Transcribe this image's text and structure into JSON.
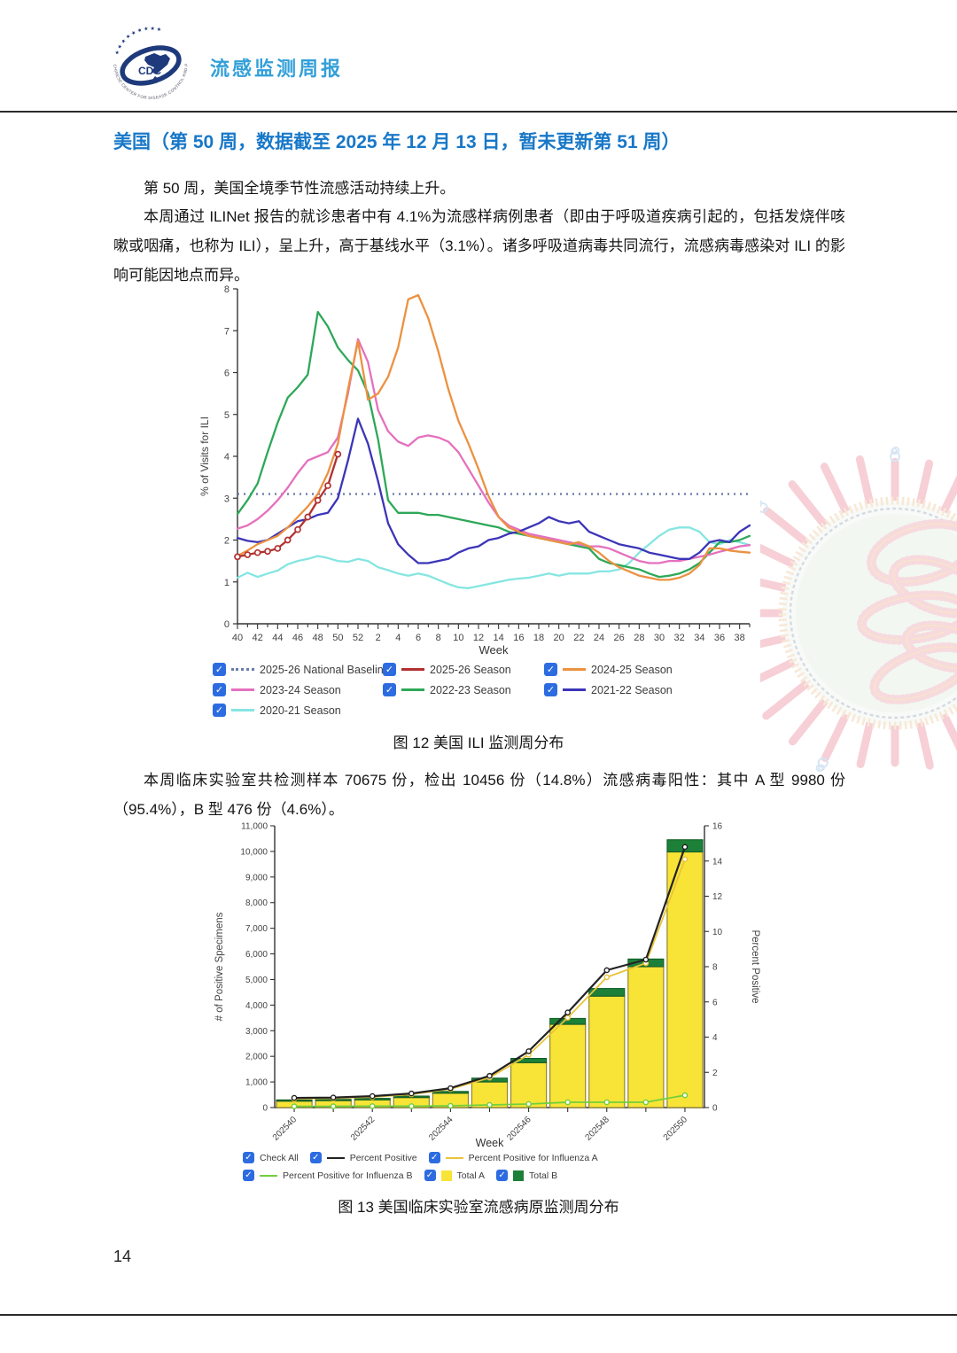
{
  "header": {
    "brand": "流感监测周报",
    "logo_text": "CDC",
    "logo_ring_text": "CHINESE CENTER FOR DISEASE CONTROL AND PREVENTION",
    "logo_stars": "★ ★ ★ ★ ★ ★ ★ ★ ★"
  },
  "page": {
    "number": "14"
  },
  "section": {
    "title": "美国（第 50 周，数据截至 2025 年 12 月 13 日，暂未更新第 51 周）",
    "paragraph_1": "第 50 周，美国全境季节性流感活动持续上升。",
    "paragraph_2": "本周通过 ILINet 报告的就诊患者中有 4.1%为流感样病例患者（即由于呼吸道疾病引起的，包括发烧伴咳嗽或咽痛，也称为 ILI），呈上升，高于基线水平（3.1%）。诸多呼吸道病毒共同流行，流感病毒感染对 ILI 的影响可能因地点而异。",
    "paragraph_3": "本周临床实验室共检测样本 70675 份，检出 10456 份（14.8%）流感病毒阳性：其中 A 型 9980 份（95.4%），B 型 476 份（4.6%）。",
    "figure_12_caption": "图 12  美国 ILI 监测周分布",
    "figure_13_caption": "图 13  美国临床实验室流感病原监测周分布"
  },
  "checkbox_color": "#2d6ce0",
  "chart_data": [
    {
      "id": "ili",
      "type": "line",
      "title": "",
      "xlabel": "Week",
      "ylabel": "% of Visits for ILI",
      "ylim": [
        0,
        8
      ],
      "y_ticks": [
        0,
        1,
        2,
        3,
        4,
        5,
        6,
        7,
        8
      ],
      "weeks": [
        "40",
        "41",
        "42",
        "43",
        "44",
        "45",
        "46",
        "47",
        "48",
        "49",
        "50",
        "51",
        "52",
        "1",
        "2",
        "3",
        "4",
        "5",
        "6",
        "7",
        "8",
        "9",
        "10",
        "11",
        "12",
        "13",
        "14",
        "15",
        "16",
        "17",
        "18",
        "19",
        "20",
        "21",
        "22",
        "23",
        "24",
        "25",
        "26",
        "27",
        "28",
        "29",
        "30",
        "31",
        "32",
        "33",
        "34",
        "35",
        "36",
        "37",
        "38",
        "39"
      ],
      "baseline": {
        "label": "2025-26 National Baseline",
        "value": 3.1,
        "color": "#6b7cab"
      },
      "series": [
        {
          "name": "2020-21 Season",
          "color": "#85e6e1",
          "markers": false,
          "values": [
            1.1,
            1.22,
            1.12,
            1.2,
            1.27,
            1.42,
            1.5,
            1.55,
            1.62,
            1.57,
            1.5,
            1.48,
            1.55,
            1.5,
            1.35,
            1.28,
            1.2,
            1.15,
            1.2,
            1.15,
            1.05,
            0.95,
            0.87,
            0.85,
            0.9,
            0.95,
            1.0,
            1.05,
            1.08,
            1.1,
            1.15,
            1.2,
            1.15,
            1.2,
            1.2,
            1.2,
            1.25,
            1.25,
            1.3,
            1.45,
            1.7,
            1.9,
            2.1,
            2.25,
            2.3,
            2.3,
            2.2,
            1.95,
            1.9,
            2.0,
            1.95,
            1.88
          ]
        },
        {
          "name": "2022-23 Season",
          "color": "#2ea858",
          "markers": false,
          "values": [
            2.62,
            2.95,
            3.35,
            4.1,
            4.8,
            5.4,
            5.65,
            5.95,
            7.45,
            7.1,
            6.6,
            6.3,
            6.05,
            5.5,
            4.4,
            2.95,
            2.65,
            2.65,
            2.65,
            2.6,
            2.6,
            2.55,
            2.5,
            2.45,
            2.4,
            2.35,
            2.3,
            2.2,
            2.15,
            2.1,
            2.05,
            2.0,
            1.95,
            1.9,
            1.85,
            1.8,
            1.55,
            1.45,
            1.4,
            1.35,
            1.3,
            1.2,
            1.12,
            1.15,
            1.2,
            1.3,
            1.45,
            1.7,
            1.95,
            1.95,
            2.0,
            2.1
          ]
        },
        {
          "name": "2023-24 Season",
          "color": "#e570be",
          "markers": false,
          "values": [
            2.27,
            2.35,
            2.5,
            2.7,
            2.95,
            3.25,
            3.6,
            3.9,
            4.0,
            4.1,
            4.45,
            5.5,
            6.8,
            6.25,
            5.1,
            4.6,
            4.35,
            4.25,
            4.45,
            4.5,
            4.45,
            4.35,
            4.1,
            3.7,
            3.3,
            2.9,
            2.55,
            2.35,
            2.25,
            2.15,
            2.1,
            2.05,
            2.0,
            1.95,
            1.9,
            1.85,
            1.85,
            1.8,
            1.7,
            1.6,
            1.5,
            1.45,
            1.45,
            1.5,
            1.5,
            1.55,
            1.6,
            1.65,
            1.72,
            1.78,
            1.85,
            1.88
          ]
        },
        {
          "name": "2021-22 Season",
          "color": "#3c35b8",
          "markers": false,
          "values": [
            2.05,
            1.98,
            1.95,
            2.0,
            2.15,
            2.3,
            2.45,
            2.5,
            2.6,
            2.65,
            3.0,
            3.9,
            4.9,
            4.3,
            3.4,
            2.4,
            1.9,
            1.65,
            1.45,
            1.45,
            1.5,
            1.55,
            1.7,
            1.8,
            1.85,
            2.0,
            2.05,
            2.15,
            2.2,
            2.3,
            2.4,
            2.55,
            2.45,
            2.4,
            2.45,
            2.2,
            2.1,
            2.0,
            1.9,
            1.85,
            1.8,
            1.7,
            1.65,
            1.6,
            1.55,
            1.55,
            1.7,
            1.95,
            2.0,
            1.95,
            2.2,
            2.35
          ]
        },
        {
          "name": "2024-25 Season",
          "color": "#ec9140",
          "markers": false,
          "values": [
            1.62,
            1.75,
            1.9,
            2.0,
            2.1,
            2.3,
            2.55,
            2.8,
            3.1,
            3.6,
            4.3,
            5.6,
            6.75,
            5.35,
            5.5,
            5.9,
            6.6,
            7.75,
            7.85,
            7.3,
            6.5,
            5.6,
            4.85,
            4.3,
            3.7,
            3.05,
            2.55,
            2.3,
            2.2,
            2.1,
            2.05,
            2.0,
            1.95,
            1.9,
            1.95,
            1.85,
            1.7,
            1.5,
            1.35,
            1.25,
            1.15,
            1.1,
            1.05,
            1.05,
            1.1,
            1.2,
            1.4,
            1.8,
            1.8,
            1.75,
            1.72,
            1.7
          ]
        },
        {
          "name": "2025-26 Season",
          "color": "#b23030",
          "markers": true,
          "values": [
            1.6,
            1.65,
            1.7,
            1.73,
            1.8,
            2.0,
            2.25,
            2.55,
            2.95,
            3.3,
            4.05
          ]
        }
      ],
      "legend": [
        {
          "label": "2025-26 National Baseline",
          "swatch": "dotted",
          "color": "#6b7cab",
          "checked": true
        },
        {
          "label": "2025-26 Season",
          "swatch": "line",
          "color": "#b23030",
          "checked": true
        },
        {
          "label": "2024-25 Season",
          "swatch": "line",
          "color": "#ec9140",
          "checked": true
        },
        {
          "label": "2023-24 Season",
          "swatch": "line",
          "color": "#e570be",
          "checked": true
        },
        {
          "label": "2022-23 Season",
          "swatch": "line",
          "color": "#2ea858",
          "checked": true
        },
        {
          "label": "2021-22 Season",
          "swatch": "line",
          "color": "#3c35b8",
          "checked": true
        },
        {
          "label": "2020-21 Season",
          "swatch": "line",
          "color": "#85e6e1",
          "checked": true
        }
      ]
    },
    {
      "id": "lab",
      "type": "bar-line-combo",
      "xlabel": "Week",
      "ylabel_left": "# of Positive Specimens",
      "ylabel_right": "Percent Positive",
      "ylim_left": [
        0,
        11000
      ],
      "ylim_right": [
        0,
        16
      ],
      "weeks": [
        "202540",
        "202541",
        "202542",
        "202543",
        "202544",
        "202545",
        "202546",
        "202547",
        "202548",
        "202549",
        "202550"
      ],
      "x_tick_labels": [
        "202540",
        "202542",
        "202544",
        "202546",
        "202548",
        "202550"
      ],
      "bars": {
        "total_a": [
          250,
          270,
          300,
          390,
          560,
          1000,
          1750,
          3250,
          4350,
          5500,
          9980
        ],
        "total_b": [
          50,
          50,
          60,
          60,
          70,
          150,
          170,
          230,
          300,
          300,
          476
        ],
        "total_a_color": "#f8e437",
        "total_a_border": "#93862e",
        "total_b_color": "#1d8038",
        "total_b_border": "#0e5a24"
      },
      "lines": [
        {
          "name": "Percent Positive",
          "color": "#222222",
          "values": [
            0.55,
            0.57,
            0.65,
            0.8,
            1.1,
            1.8,
            3.2,
            5.4,
            7.8,
            8.4,
            14.8
          ]
        },
        {
          "name": "Percent Positive for Influenza A",
          "color": "#e9c43a",
          "values": [
            0.5,
            0.53,
            0.6,
            0.75,
            1.05,
            1.7,
            3.0,
            5.1,
            7.4,
            8.2,
            14.1
          ]
        },
        {
          "name": "Percent Positive for Influenza B",
          "color": "#71cf3c",
          "values": [
            0.07,
            0.07,
            0.08,
            0.08,
            0.1,
            0.15,
            0.2,
            0.3,
            0.3,
            0.3,
            0.7
          ]
        }
      ],
      "legend": [
        {
          "label": "Check All",
          "swatch": "none",
          "checked": true
        },
        {
          "label": "Percent Positive",
          "swatch": "line",
          "color": "#222222",
          "checked": true
        },
        {
          "label": "Percent Positive for Influenza A",
          "swatch": "line",
          "color": "#e9c43a",
          "checked": true
        },
        {
          "label": "Percent Positive for Influenza B",
          "swatch": "line",
          "color": "#71cf3c",
          "checked": true
        },
        {
          "label": "Total A",
          "swatch": "square",
          "color": "#f8e437",
          "checked": true
        },
        {
          "label": "Total B",
          "swatch": "square",
          "color": "#1d8038",
          "checked": true
        }
      ]
    }
  ]
}
